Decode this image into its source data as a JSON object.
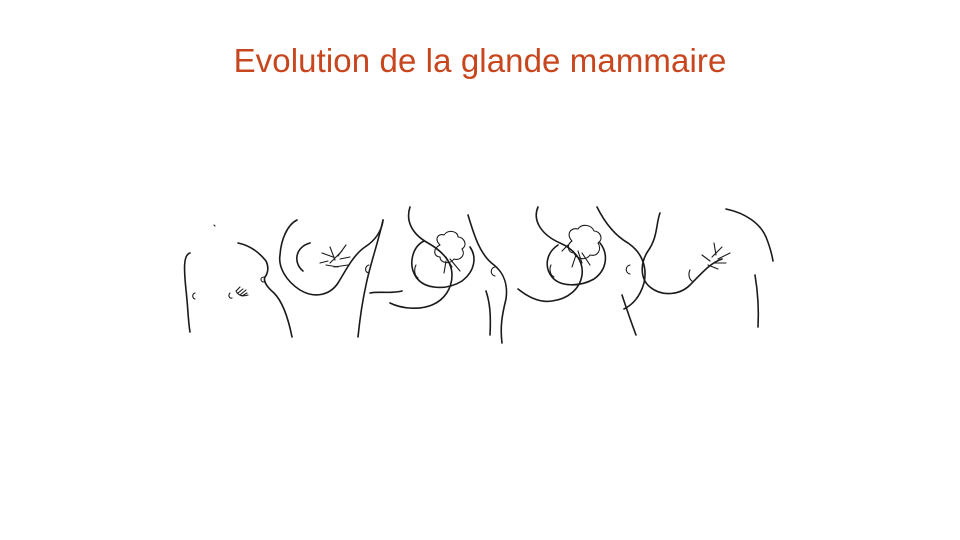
{
  "slide": {
    "title": "Evolution de la glande mammaire",
    "title_color": "#c8461e"
  },
  "illustration": {
    "stages": [
      {
        "name": "stage-1",
        "gland": "none"
      },
      {
        "name": "stage-2",
        "gland": "bud"
      },
      {
        "name": "stage-3",
        "gland": "branching"
      },
      {
        "name": "stage-4",
        "gland": "lobular"
      },
      {
        "name": "stage-5",
        "gland": "lobular-full"
      },
      {
        "name": "stage-6",
        "gland": "involuted"
      }
    ]
  }
}
